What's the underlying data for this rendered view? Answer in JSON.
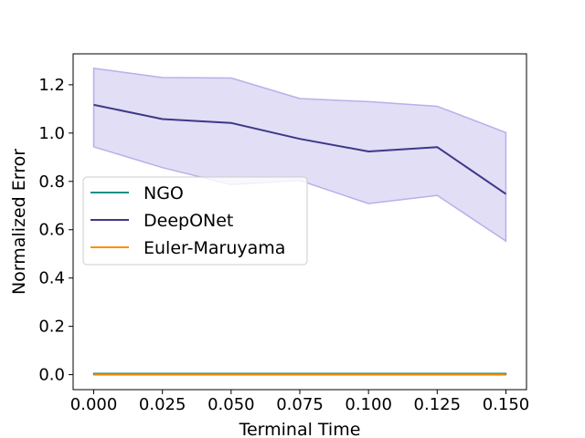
{
  "chart_data": {
    "type": "line",
    "xlabel": "Terminal Time",
    "ylabel": "Normalized Error",
    "xlim": [
      -0.0075,
      0.1575
    ],
    "ylim": [
      -0.062,
      1.328
    ],
    "xticks": [
      0.0,
      0.025,
      0.05,
      0.075,
      0.1,
      0.125,
      0.15
    ],
    "xtick_labels": [
      "0.000",
      "0.025",
      "0.050",
      "0.075",
      "0.100",
      "0.125",
      "0.150"
    ],
    "yticks": [
      0.0,
      0.2,
      0.4,
      0.6,
      0.8,
      1.0,
      1.2
    ],
    "ytick_labels": [
      "0.0",
      "0.2",
      "0.4",
      "0.6",
      "0.8",
      "1.0",
      "1.2"
    ],
    "grid": false,
    "legend_position": "center-left",
    "x": [
      0.0,
      0.025,
      0.05,
      0.075,
      0.1,
      0.125,
      0.15
    ],
    "series": [
      {
        "name": "NGO",
        "color": "#1a8f8c",
        "values": [
          0.003,
          0.003,
          0.003,
          0.003,
          0.003,
          0.003,
          0.003
        ],
        "band_lower": [
          0.001,
          0.001,
          0.001,
          0.001,
          0.001,
          0.001,
          0.001
        ],
        "band_upper": [
          0.005,
          0.005,
          0.005,
          0.005,
          0.005,
          0.005,
          0.005
        ]
      },
      {
        "name": "DeepONet",
        "color": "#3d3888",
        "band_color": "#cdc8f0",
        "values": [
          1.117,
          1.058,
          1.042,
          0.976,
          0.924,
          0.942,
          0.748
        ],
        "band_lower": [
          0.943,
          0.857,
          0.787,
          0.804,
          0.708,
          0.742,
          0.553
        ],
        "band_upper": [
          1.268,
          1.23,
          1.228,
          1.143,
          1.13,
          1.111,
          1.002
        ]
      },
      {
        "name": "Euler-Maruyama",
        "color": "#ff8c00",
        "values": [
          0.0,
          0.0,
          0.0,
          0.0,
          0.0,
          0.0,
          0.0
        ]
      }
    ]
  }
}
